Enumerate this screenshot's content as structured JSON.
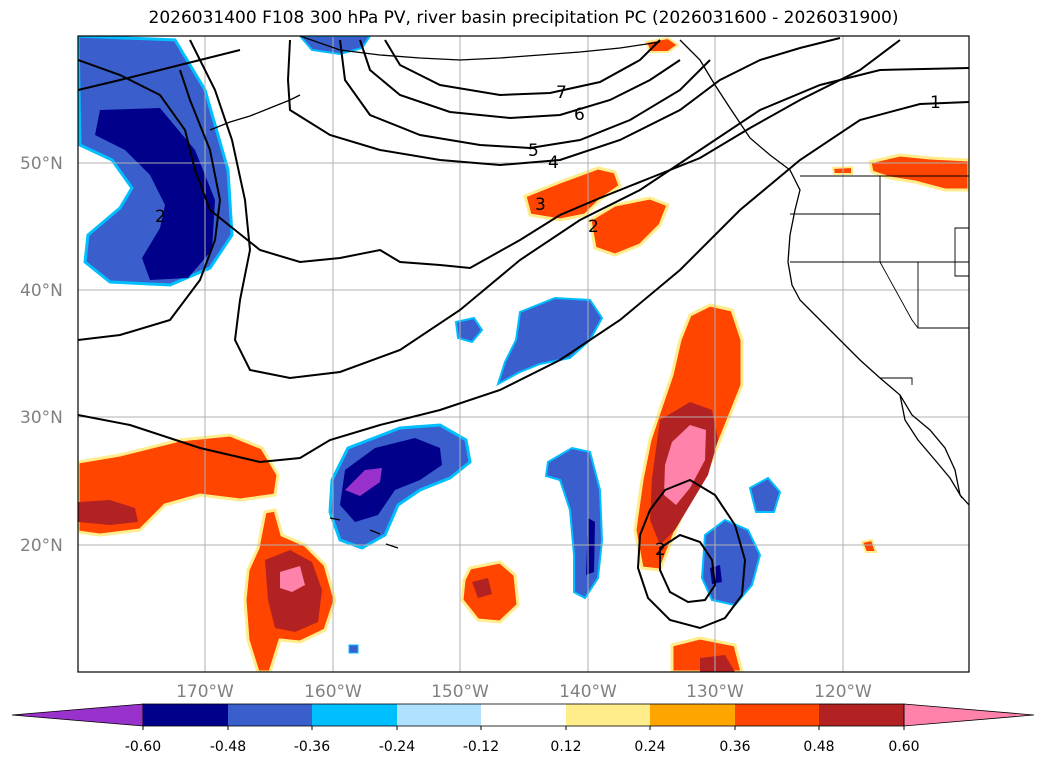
{
  "title": "2026031400 F108 300 hPa PV, river basin precipitation PC (2026031600 - 2026031900)",
  "lat_labels": [
    "50°N",
    "40°N",
    "30°N",
    "20°N"
  ],
  "lon_labels": [
    "170°W",
    "160°W",
    "150°W",
    "140°W",
    "130°W",
    "120°W"
  ],
  "colorbar": {
    "ticks": [
      "-0.60",
      "-0.48",
      "-0.36",
      "-0.24",
      "-0.12",
      "0.12",
      "0.24",
      "0.36",
      "0.48",
      "0.60"
    ],
    "colors": [
      "#9932CC",
      "#00008B",
      "#3A5FCD",
      "#00BFFF",
      "#B0E2FF",
      "#FFFFFF",
      "#FFEC8B",
      "#FFA500",
      "#FF4500",
      "#B22222",
      "#FF82AB"
    ]
  },
  "pv_contour_labels": [
    "7",
    "6",
    "5",
    "4",
    "3",
    "2",
    "1",
    "2",
    "2"
  ]
}
